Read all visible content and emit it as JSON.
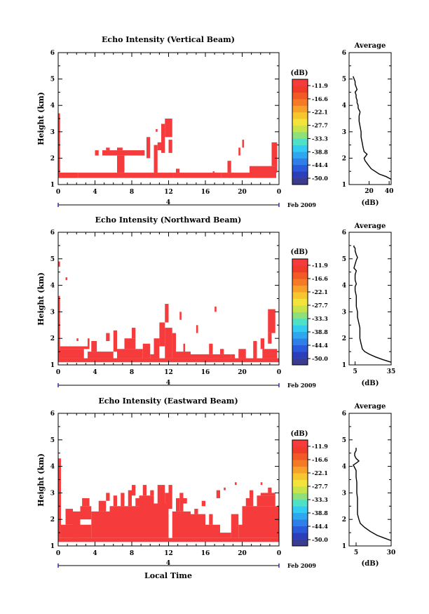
{
  "figure": {
    "date_label": "Feb 2009",
    "day_marker": "4",
    "bottom_xlabel": "Local Time",
    "ylabel": "Height (km)",
    "colorbar_unit": "(dB)",
    "colorbar_ticks": [
      "-11.9",
      "-16.6",
      "-22.1",
      "-27.7",
      "-33.3",
      "-38.8",
      "-44.4",
      "-50.0"
    ],
    "colorbar_colors": [
      "#3b3b8f",
      "#2c3fb8",
      "#2a5ad9",
      "#2f7fe8",
      "#2fa6f0",
      "#33ccf0",
      "#4fe0c8",
      "#8de07a",
      "#c9e44a",
      "#f2e43a",
      "#f7c62e",
      "#f7a02a",
      "#f47a26",
      "#f25a25",
      "#f03a2a",
      "#f53b3b"
    ],
    "echo_color": "#f53b3b",
    "average_title": "Average",
    "average_xlabel": "(dB)"
  },
  "chart_data": [
    {
      "type": "heatmap",
      "title": "Echo Intensity (Vertical Beam)",
      "x_unit": "hour",
      "xlim": [
        0,
        24
      ],
      "xticks": [
        "0",
        "4",
        "8",
        "12",
        "16",
        "20",
        "0"
      ],
      "ylim": [
        1,
        6
      ],
      "yticks": [
        "1",
        "2",
        "3",
        "4",
        "5",
        "6"
      ],
      "cells": [
        [
          0,
          0.2,
          1.3,
          3.7
        ],
        [
          0,
          2.0,
          1.25,
          1.45
        ],
        [
          0.2,
          2.2,
          1.25,
          1.45
        ],
        [
          2.2,
          12.5,
          1.25,
          1.45
        ],
        [
          12.5,
          17.7,
          1.25,
          1.45
        ],
        [
          17.7,
          20.8,
          1.25,
          1.45
        ],
        [
          20.8,
          23.7,
          1.25,
          1.7
        ],
        [
          4.0,
          4.4,
          2.1,
          2.3
        ],
        [
          4.8,
          9.4,
          2.1,
          2.3
        ],
        [
          5.2,
          5.6,
          2.3,
          2.4
        ],
        [
          6.4,
          7.0,
          2.3,
          2.4
        ],
        [
          6.4,
          7.2,
          1.45,
          2.1
        ],
        [
          9.6,
          10.0,
          2.0,
          2.8
        ],
        [
          10.4,
          10.8,
          1.45,
          2.5
        ],
        [
          10.8,
          11.2,
          2.3,
          2.6
        ],
        [
          11.2,
          11.6,
          2.2,
          3.3
        ],
        [
          11.6,
          12.4,
          2.8,
          3.5
        ],
        [
          12.0,
          12.4,
          2.2,
          2.7
        ],
        [
          10.6,
          10.8,
          3.0,
          3.1
        ],
        [
          12.8,
          13.2,
          1.45,
          1.6
        ],
        [
          16.8,
          17.0,
          1.45,
          1.5
        ],
        [
          18.4,
          18.8,
          1.45,
          1.9
        ],
        [
          19.6,
          19.8,
          2.1,
          2.4
        ],
        [
          20.0,
          20.2,
          2.4,
          2.7
        ],
        [
          23.2,
          23.8,
          1.7,
          2.6
        ],
        [
          23.6,
          23.8,
          1.45,
          2.3
        ]
      ]
    },
    {
      "type": "heatmap",
      "title": "Echo Intensity (Northward Beam)",
      "x_unit": "hour",
      "xlim": [
        0,
        24
      ],
      "xticks": [
        "0",
        "4",
        "8",
        "12",
        "16",
        "20",
        "0"
      ],
      "ylim": [
        1,
        6
      ],
      "yticks": [
        "1",
        "2",
        "3",
        "4",
        "5",
        "6"
      ],
      "cells": [
        [
          0,
          24,
          1.1,
          1.25
        ],
        [
          0,
          0.2,
          1.25,
          3.6
        ],
        [
          0,
          0.2,
          4.7,
          4.9
        ],
        [
          0.8,
          1.0,
          4.2,
          4.3
        ],
        [
          0,
          2.8,
          1.25,
          1.6
        ],
        [
          0.2,
          3.2,
          1.6,
          1.7
        ],
        [
          2.0,
          2.2,
          1.9,
          2.0
        ],
        [
          3.2,
          3.4,
          1.6,
          2.0
        ],
        [
          3.2,
          6.0,
          1.25,
          1.5
        ],
        [
          3.6,
          4.2,
          1.5,
          1.9
        ],
        [
          6.0,
          6.4,
          1.5,
          2.3
        ],
        [
          5.2,
          5.6,
          1.9,
          2.2
        ],
        [
          6.4,
          9.2,
          1.25,
          1.6
        ],
        [
          7.2,
          8.4,
          1.6,
          2.0
        ],
        [
          8.0,
          8.4,
          2.0,
          2.4
        ],
        [
          9.2,
          10.0,
          1.25,
          1.8
        ],
        [
          10.0,
          10.4,
          1.25,
          1.4
        ],
        [
          10.4,
          11.0,
          1.25,
          2.0
        ],
        [
          11.0,
          11.6,
          1.7,
          2.6
        ],
        [
          11.6,
          12.4,
          1.25,
          2.4
        ],
        [
          11.6,
          12.0,
          2.6,
          3.3
        ],
        [
          12.4,
          12.8,
          1.25,
          2.2
        ],
        [
          12.8,
          14.4,
          1.25,
          1.5
        ],
        [
          13.2,
          13.4,
          2.7,
          3.0
        ],
        [
          13.6,
          13.8,
          1.5,
          1.8
        ],
        [
          14.4,
          18.8,
          1.25,
          1.4
        ],
        [
          16.4,
          16.8,
          1.4,
          1.8
        ],
        [
          17.6,
          18.0,
          1.4,
          1.6
        ],
        [
          17.0,
          17.2,
          3.0,
          3.2
        ],
        [
          15.0,
          15.2,
          2.2,
          2.5
        ],
        [
          18.8,
          19.2,
          1.25,
          1.4
        ],
        [
          19.6,
          20.4,
          1.25,
          1.6
        ],
        [
          21.2,
          21.6,
          1.25,
          1.9
        ],
        [
          22.0,
          22.4,
          1.6,
          2.0
        ],
        [
          22.2,
          23.8,
          1.25,
          1.6
        ],
        [
          22.8,
          23.6,
          2.2,
          3.1
        ],
        [
          22.8,
          23.2,
          1.8,
          2.2
        ]
      ]
    },
    {
      "type": "heatmap",
      "title": "Echo Intensity (Eastward Beam)",
      "x_unit": "hour",
      "xlim": [
        0,
        24
      ],
      "xticks": [
        "0",
        "4",
        "8",
        "12",
        "16",
        "20",
        "0"
      ],
      "ylim": [
        1,
        6
      ],
      "yticks": [
        "1",
        "2",
        "3",
        "4",
        "5",
        "6"
      ],
      "cells": [
        [
          0,
          24,
          1.15,
          1.3
        ],
        [
          0,
          0.3,
          1.3,
          4.3
        ],
        [
          0.3,
          3.6,
          1.3,
          1.8
        ],
        [
          0.8,
          1.6,
          1.8,
          2.4
        ],
        [
          1.6,
          2.4,
          1.3,
          2.3
        ],
        [
          2.4,
          3.6,
          2.0,
          2.5
        ],
        [
          2.6,
          3.4,
          2.5,
          2.8
        ],
        [
          3.6,
          5.6,
          1.3,
          2.3
        ],
        [
          4.4,
          5.2,
          2.3,
          2.7
        ],
        [
          5.2,
          5.6,
          2.7,
          3.0
        ],
        [
          5.6,
          8.8,
          1.3,
          2.5
        ],
        [
          6.0,
          6.4,
          2.5,
          2.9
        ],
        [
          6.8,
          7.2,
          2.5,
          3.0
        ],
        [
          7.6,
          8.0,
          2.5,
          3.1
        ],
        [
          8.0,
          8.4,
          2.9,
          3.3
        ],
        [
          8.4,
          8.8,
          2.5,
          2.8
        ],
        [
          8.8,
          10.4,
          1.3,
          2.9
        ],
        [
          9.2,
          9.6,
          2.9,
          3.3
        ],
        [
          10.0,
          10.4,
          2.9,
          3.1
        ],
        [
          10.4,
          12.0,
          1.3,
          2.6
        ],
        [
          10.8,
          11.2,
          2.6,
          3.3
        ],
        [
          11.2,
          11.6,
          2.5,
          3.3
        ],
        [
          11.6,
          12.0,
          2.6,
          3.0
        ],
        [
          12.0,
          12.4,
          2.4,
          3.3
        ],
        [
          12.4,
          14.4,
          1.3,
          2.3
        ],
        [
          12.8,
          13.2,
          2.3,
          2.8
        ],
        [
          13.2,
          13.6,
          2.3,
          3.0
        ],
        [
          13.6,
          14.0,
          2.6,
          2.8
        ],
        [
          14.4,
          16.0,
          1.3,
          2.2
        ],
        [
          14.8,
          15.2,
          2.2,
          2.4
        ],
        [
          15.6,
          16.0,
          2.5,
          2.7
        ],
        [
          16.0,
          17.6,
          1.3,
          1.8
        ],
        [
          16.4,
          16.8,
          1.8,
          2.2
        ],
        [
          17.2,
          17.6,
          2.8,
          3.1
        ],
        [
          17.6,
          18.8,
          1.3,
          1.5
        ],
        [
          18.8,
          19.6,
          1.3,
          2.2
        ],
        [
          19.6,
          20.0,
          1.3,
          1.8
        ],
        [
          20.0,
          24,
          1.3,
          2.5
        ],
        [
          20.4,
          21.2,
          2.5,
          2.8
        ],
        [
          20.8,
          21.2,
          2.8,
          3.1
        ],
        [
          21.6,
          23.6,
          2.5,
          2.9
        ],
        [
          22.0,
          23.6,
          2.9,
          3.0
        ],
        [
          22.8,
          23.2,
          3.0,
          3.2
        ],
        [
          22.0,
          22.2,
          3.3,
          3.4
        ],
        [
          19.2,
          19.4,
          3.3,
          3.4
        ],
        [
          18.0,
          18.2,
          3.1,
          3.2
        ]
      ]
    }
  ],
  "averages": [
    {
      "type": "line",
      "title": "Average",
      "xlabel": "(dB)",
      "xlim": [
        0,
        42
      ],
      "xticks": [
        "20",
        "40"
      ],
      "xtick_values": [
        20,
        40
      ],
      "ylim": [
        1,
        6
      ],
      "yticks": [
        "1",
        "2",
        "3",
        "4",
        "5",
        "6"
      ],
      "x": [
        42,
        37,
        30,
        26,
        22,
        19,
        16,
        15,
        18,
        15,
        14,
        13,
        12,
        12,
        11,
        10,
        10,
        11,
        9,
        9,
        8,
        8,
        7,
        7,
        6,
        8,
        7,
        6,
        6,
        4
      ],
      "y": [
        1.2,
        1.3,
        1.4,
        1.5,
        1.6,
        1.75,
        1.9,
        2.0,
        2.15,
        2.25,
        2.4,
        2.6,
        2.8,
        3.0,
        3.2,
        3.4,
        3.6,
        3.75,
        3.9,
        4.0,
        4.1,
        4.2,
        4.3,
        4.4,
        4.5,
        4.6,
        4.7,
        4.8,
        4.9,
        5.1
      ]
    },
    {
      "type": "line",
      "title": "Average",
      "xlabel": "(dB)",
      "xlim": [
        0,
        35
      ],
      "xticks": [
        "5",
        "35"
      ],
      "xtick_values": [
        5,
        35
      ],
      "ylim": [
        1,
        6
      ],
      "yticks": [
        "1",
        "2",
        "3",
        "4",
        "5",
        "6"
      ],
      "x": [
        35,
        28,
        22,
        17,
        13,
        11,
        10,
        9,
        9,
        9,
        8,
        7,
        7,
        6,
        6,
        6,
        5,
        5,
        6,
        5,
        5,
        6,
        4,
        5,
        6,
        7,
        6,
        5,
        5,
        4,
        4
      ],
      "y": [
        1.1,
        1.2,
        1.3,
        1.4,
        1.5,
        1.6,
        1.8,
        2.0,
        2.2,
        2.4,
        2.6,
        2.8,
        3.0,
        3.2,
        3.4,
        3.6,
        3.8,
        3.95,
        4.05,
        4.2,
        4.4,
        4.55,
        4.65,
        4.8,
        4.95,
        5.05,
        5.15,
        5.3,
        5.4,
        5.45,
        5.5
      ]
    },
    {
      "type": "line",
      "title": "Average",
      "xlabel": "(dB)",
      "xlim": [
        0,
        30
      ],
      "xticks": [
        "5",
        "30"
      ],
      "xtick_values": [
        5,
        30
      ],
      "ylim": [
        1,
        6
      ],
      "yticks": [
        "1",
        "2",
        "3",
        "4",
        "5",
        "6"
      ],
      "x": [
        30,
        25,
        20,
        15,
        11,
        8,
        7,
        6,
        6,
        6,
        6,
        5.5,
        5.5,
        5.5,
        5,
        5,
        5,
        4,
        3,
        5,
        7,
        5,
        4,
        4,
        5,
        5
      ],
      "y": [
        1.2,
        1.3,
        1.4,
        1.55,
        1.7,
        1.85,
        2.0,
        2.2,
        2.4,
        2.6,
        2.8,
        3.0,
        3.2,
        3.4,
        3.6,
        3.75,
        3.85,
        3.95,
        4.05,
        4.12,
        4.2,
        4.3,
        4.4,
        4.5,
        4.6,
        4.7
      ]
    }
  ]
}
